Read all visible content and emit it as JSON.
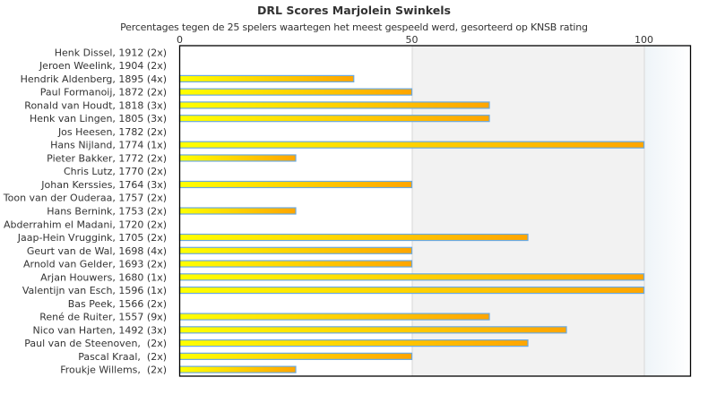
{
  "chart_data": {
    "type": "bar",
    "orientation": "horizontal",
    "title": "DRL Scores Marjolein Swinkels",
    "subtitle": "Percentages tegen de 25 spelers waartegen het meest gespeeld werd, gesorteerd op KNSB rating",
    "xlabel": "",
    "ylabel": "",
    "xlim": [
      0,
      110
    ],
    "x_ticks": [
      0,
      50,
      100
    ],
    "x_tick_labels": [
      "0",
      "50",
      "100"
    ],
    "x_axis_position": "top",
    "grid": true,
    "categories": [
      "Henk Dissel, 1912 (2x)",
      "Jeroen Weelink, 1904 (2x)",
      "Hendrik Aldenberg, 1895 (4x)",
      "Paul Formanoij, 1872 (2x)",
      "Ronald van Houdt, 1818 (3x)",
      "Henk van Lingen, 1805 (3x)",
      "Jos Heesen, 1782 (2x)",
      "Hans Nijland, 1774 (1x)",
      "Pieter Bakker, 1772 (2x)",
      "Chris Lutz, 1770 (2x)",
      "Johan Kerssies, 1764 (3x)",
      "Toon van der Ouderaa, 1757 (2x)",
      "Hans Bernink, 1753 (2x)",
      "Abderrahim el Madani, 1720 (2x)",
      "Jaap-Hein Vruggink, 1705 (2x)",
      "Geurt van de Wal, 1698 (4x)",
      "Arnold van Gelder, 1693 (2x)",
      "Arjan Houwers, 1680 (1x)",
      "Valentijn van Esch, 1596 (1x)",
      "Bas Peek, 1566 (2x)",
      "René de Ruiter, 1557 (9x)",
      "Nico van Harten, 1492 (3x)",
      "Paul van de Steenoven,  (2x)",
      "Pascal Kraal,  (2x)",
      "Froukje Willems,  (2x)"
    ],
    "values": [
      0,
      0,
      37.5,
      50,
      66.7,
      66.7,
      0,
      100,
      25,
      0,
      50,
      0,
      25,
      0,
      75,
      50,
      50,
      100,
      100,
      0,
      66.7,
      83.3,
      75,
      50,
      25
    ],
    "colors": {
      "bar_start": "#ffff00",
      "bar_end": "#ffa500",
      "bar_outline": "#6aa9e0",
      "band_low": "#ffffff",
      "band_mid": "#f2f2f2",
      "band_high_start": "#eef4f8",
      "band_high_end": "#ffffff",
      "gridline": "#dddddd",
      "frame": "#000000"
    }
  }
}
